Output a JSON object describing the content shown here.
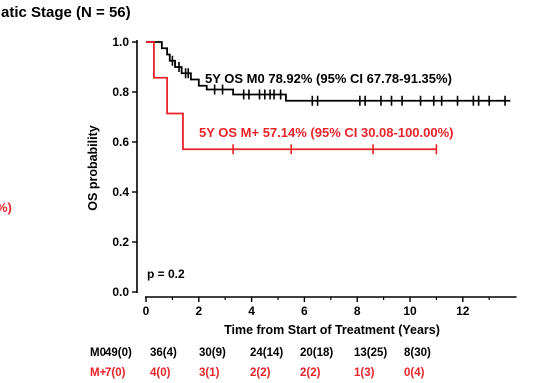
{
  "chart_data": {
    "type": "line",
    "title": "atic Stage  (N = 56)",
    "xlabel": "Time from Start of Treatment (Years)",
    "ylabel": "OS probability",
    "xlim": [
      0,
      14
    ],
    "ylim": [
      0,
      1.0
    ],
    "x_ticks": [
      "0",
      "2",
      "4",
      "6",
      "8",
      "10",
      "12"
    ],
    "y_ticks": [
      "0.0",
      "0.2",
      "0.4",
      "0.6",
      "0.8",
      "1.0"
    ],
    "p_value": "p = 0.2",
    "left_fragment": "%)",
    "series": [
      {
        "name": "M0",
        "color": "#000000",
        "annotation": "5Y OS M0 78.92%  (95% CI 67.78-91.35%)",
        "steps": [
          [
            0,
            1.0
          ],
          [
            0.6,
            0.975
          ],
          [
            0.8,
            0.95
          ],
          [
            0.9,
            0.925
          ],
          [
            1.1,
            0.9
          ],
          [
            1.35,
            0.875
          ],
          [
            1.7,
            0.85
          ],
          [
            2.0,
            0.825
          ],
          [
            2.3,
            0.81
          ],
          [
            3.3,
            0.79
          ],
          [
            5.3,
            0.765
          ],
          [
            13.8,
            0.765
          ]
        ],
        "censor": [
          1.0,
          1.25,
          1.5,
          1.6,
          2.6,
          2.9,
          3.7,
          3.9,
          4.3,
          4.5,
          4.7,
          4.85,
          5.1,
          6.3,
          6.5,
          8.1,
          8.3,
          8.9,
          9.3,
          9.7,
          10.4,
          10.9,
          11.2,
          11.8,
          12.4,
          12.6,
          13.0,
          13.6
        ]
      },
      {
        "name": "M+",
        "color": "#e8232a",
        "annotation": "5Y OS  M+ 57.14%  (95% CI 30.08-100.00%)",
        "steps": [
          [
            0,
            1.0
          ],
          [
            0.3,
            0.857
          ],
          [
            0.8,
            0.714
          ],
          [
            1.4,
            0.571
          ],
          [
            11.0,
            0.571
          ]
        ],
        "censor": [
          3.3,
          5.5,
          8.6,
          11.0
        ]
      }
    ],
    "risk_table": [
      {
        "label": "M0",
        "color": "#000000",
        "values": [
          "49(0)",
          "36(4)",
          "30(9)",
          "24(14)",
          "20(18)",
          "13(25)",
          "8(30)"
        ]
      },
      {
        "label": "M+",
        "color": "#e8232a",
        "values": [
          "7(0)",
          "4(0)",
          "3(1)",
          "2(2)",
          "2(2)",
          "1(3)",
          "0(4)"
        ]
      }
    ]
  }
}
